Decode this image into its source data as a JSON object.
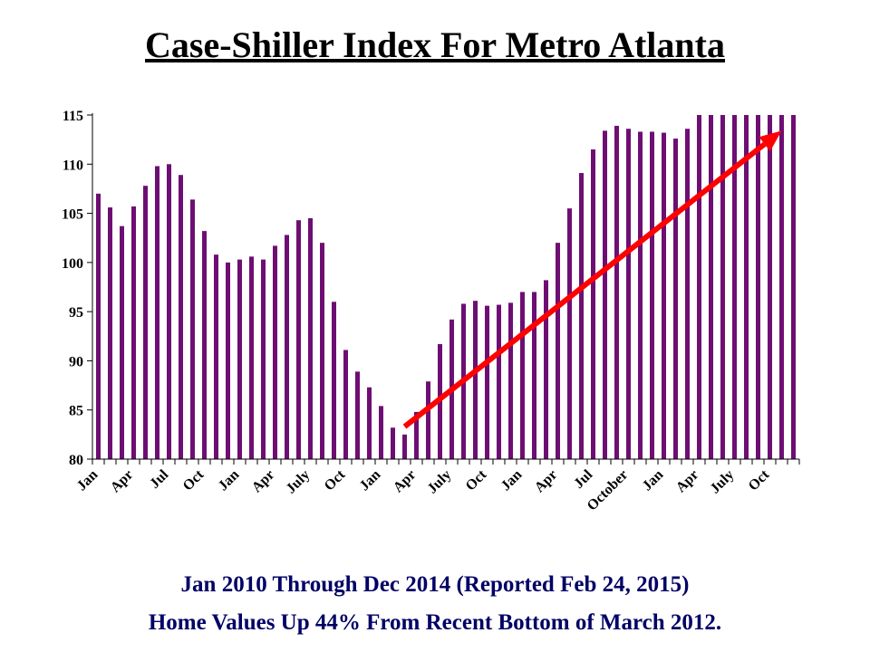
{
  "title": "Case-Shiller Index For Metro Atlanta",
  "captions": [
    "Jan 2010 Through Dec 2014 (Reported Feb 24, 2015)",
    "Home Values Up 44% From Recent Bottom of March 2012."
  ],
  "colors": {
    "bar": "#6e0e73",
    "arrow": "#ff0000",
    "caption": "#000066"
  },
  "chart_data": {
    "type": "bar",
    "title": "Case-Shiller Index For Metro Atlanta",
    "xlabel": "",
    "ylabel": "",
    "ylim": [
      80,
      115
    ],
    "yticks": [
      80,
      85,
      90,
      95,
      100,
      105,
      110,
      115
    ],
    "grid": false,
    "x_tick_labels": [
      "Jan",
      "Apr",
      "Jul",
      "Oct",
      "Jan",
      "Apr",
      "July",
      "Oct",
      "Jan",
      "Apr",
      "July",
      "Oct",
      "Jan",
      "Apr",
      "Jul",
      "October",
      "Jan",
      "Apr",
      "July",
      "Oct"
    ],
    "values": [
      107.0,
      105.6,
      103.7,
      105.7,
      107.8,
      109.8,
      110.0,
      108.9,
      106.4,
      103.2,
      100.8,
      100.0,
      100.3,
      100.6,
      100.3,
      101.7,
      102.8,
      104.3,
      104.5,
      102.0,
      96.0,
      91.1,
      88.9,
      87.3,
      85.4,
      83.2,
      82.5,
      84.8,
      87.9,
      91.7,
      94.2,
      95.8,
      96.1,
      95.6,
      95.7,
      95.9,
      97.0,
      97.0,
      98.2,
      102.0,
      105.5,
      109.1,
      111.5,
      113.4,
      113.9,
      113.6,
      113.3,
      113.3,
      113.2,
      112.6,
      113.6,
      115.0,
      115.0,
      115.0,
      115.0,
      115.0,
      115.0,
      115.0,
      115.0,
      115.0
    ],
    "annotations": [
      {
        "type": "arrow",
        "from_index": 26,
        "from_value": 83.3,
        "to_index": 58,
        "to_value": 113.4
      }
    ]
  }
}
